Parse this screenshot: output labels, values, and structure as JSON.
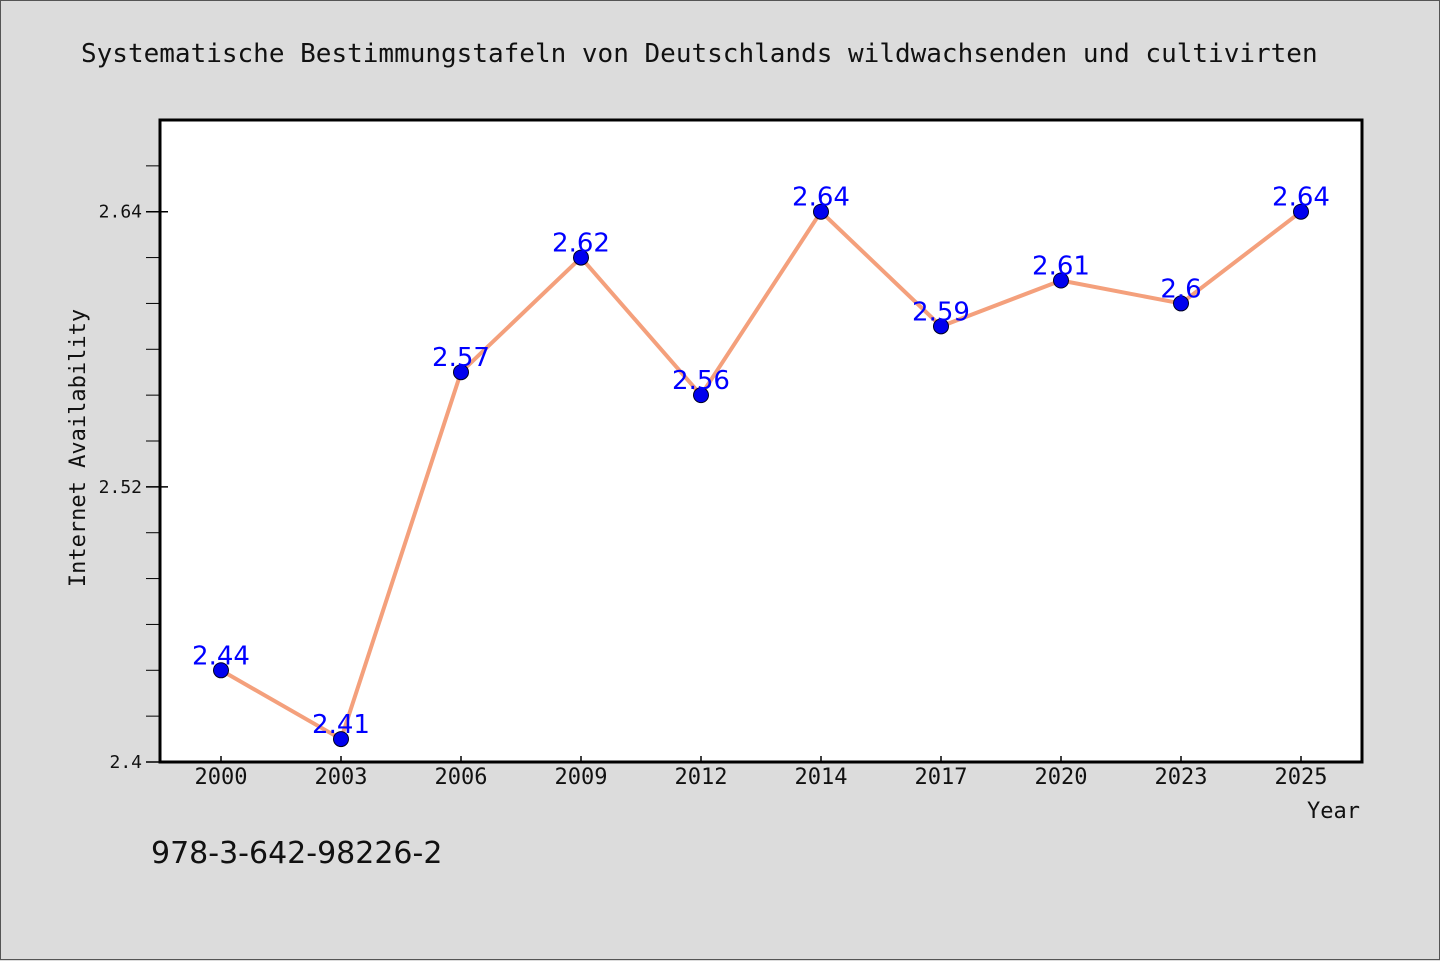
{
  "chart_data": {
    "type": "line",
    "title": "Systematische Bestimmungstafeln von Deutschlands wildwachsenden und cultivirten",
    "xlabel": "Year",
    "ylabel": "Internet Availability",
    "categories": [
      "2000",
      "2003",
      "2006",
      "2009",
      "2012",
      "2014",
      "2017",
      "2020",
      "2023",
      "2025"
    ],
    "series": [
      {
        "values": [
          2.44,
          2.41,
          2.57,
          2.62,
          2.56,
          2.64,
          2.59,
          2.61,
          2.6,
          2.64
        ],
        "labels": [
          "2.44",
          "2.41",
          "2.57",
          "2.62",
          "2.56",
          "2.64",
          "2.59",
          "2.61",
          "2.6",
          "2.64"
        ],
        "line_color": "#f4a07c",
        "marker_color": "#0000ee"
      }
    ],
    "ylim": [
      2.4,
      2.68
    ],
    "yticks": [
      "2.4",
      "2.52",
      "2.64"
    ],
    "ytick_values": [
      2.4,
      2.52,
      2.64
    ],
    "grid": false,
    "footer": "978-3-642-98226-2"
  }
}
